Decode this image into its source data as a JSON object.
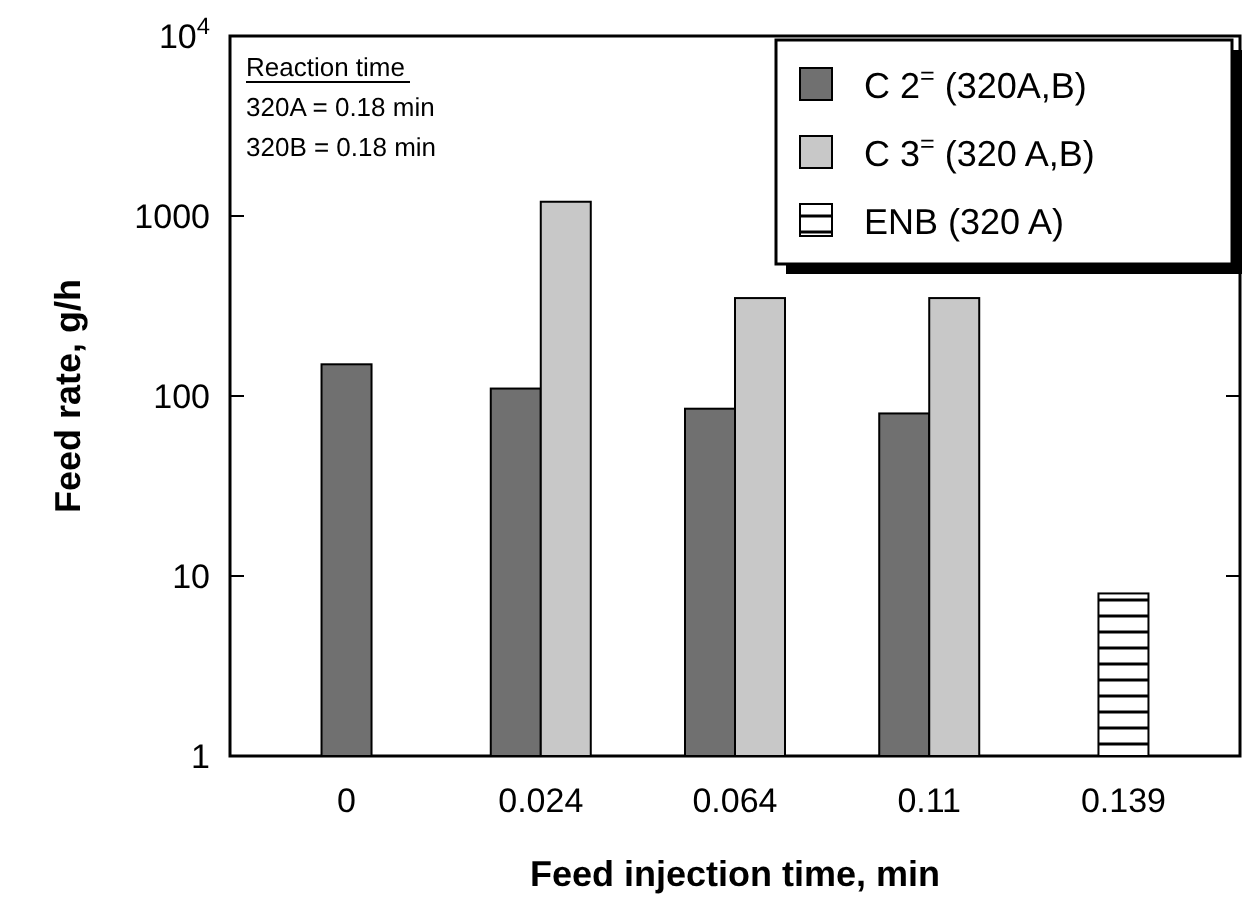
{
  "chart_data": {
    "type": "bar",
    "xlabel": "Feed injection time, min",
    "ylabel": "Feed rate, g/h",
    "categories": [
      "0",
      "0.024",
      "0.064",
      "0.11",
      "0.139"
    ],
    "series": [
      {
        "name": "C 2$^{=}$  (320A,B)",
        "color": "#707070",
        "values": [
          150,
          110,
          85,
          80,
          null
        ]
      },
      {
        "name": "C 3$^{=}$  (320 A,B)",
        "color": "#c8c8c8",
        "values": [
          null,
          1200,
          350,
          350,
          null
        ]
      },
      {
        "name": "ENB (320 A)",
        "color": "#000000",
        "values": [
          null,
          null,
          null,
          null,
          8
        ]
      }
    ],
    "log": true,
    "ylim": [
      1,
      10000
    ],
    "yticks": [
      1,
      10,
      100,
      1000,
      {
        "value": 10000,
        "label": "10$^{4}$"
      }
    ],
    "legend": "top right",
    "grid": false,
    "annotations": [
      "Reaction time",
      "320A = 0.18 min",
      "320B = 0.18 min"
    ]
  }
}
